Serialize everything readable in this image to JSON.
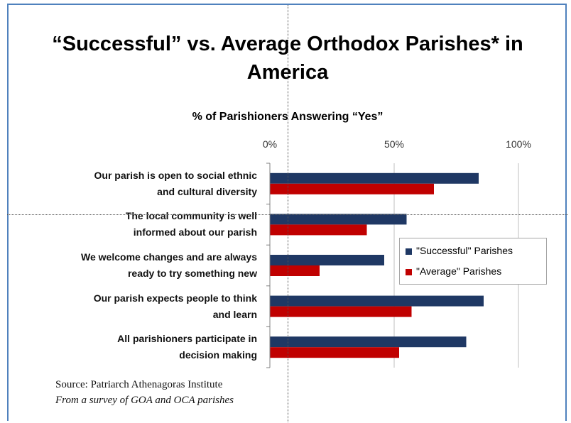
{
  "page": {
    "title": "“Successful” vs. Average Orthodox Parishes* in America",
    "source_line": "Source: Patriarch Athenagoras  Institute",
    "note_line": "From a survey of GOA and OCA parishes"
  },
  "chart_data": {
    "type": "bar",
    "orientation": "horizontal",
    "title": "% of Parishioners Answering “Yes”",
    "xlim": [
      0,
      100
    ],
    "x_ticks": [
      "0%",
      "50%",
      "100%"
    ],
    "x_tick_values": [
      0,
      50,
      100
    ],
    "categories": [
      "Our parish is open to social ethnic and cultural diversity",
      "The local community is well informed about our parish",
      "We welcome changes and are always ready to try something new",
      "Our parish expects people to think and learn",
      "All parishioners participate in decision making"
    ],
    "category_lines": [
      [
        "Our parish is open to social ethnic",
        "and cultural diversity"
      ],
      [
        "The local community is well",
        "informed about our parish"
      ],
      [
        "We welcome changes and are always",
        "ready to try something new"
      ],
      [
        "Our parish expects people to think",
        "and learn"
      ],
      [
        "All parishioners participate in",
        "decision making"
      ]
    ],
    "series": [
      {
        "name": "\"Successful\" Parishes",
        "color": "#1f3864",
        "values": [
          84,
          55,
          46,
          86,
          79
        ]
      },
      {
        "name": "\"Average\" Parishes",
        "color": "#c00000",
        "values": [
          66,
          39,
          20,
          57,
          52
        ]
      }
    ],
    "grid": true,
    "legend_position": "right"
  }
}
